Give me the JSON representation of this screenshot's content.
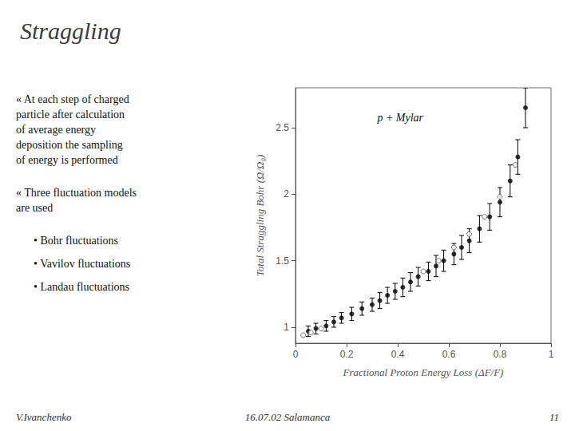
{
  "chart_data": {
    "type": "scatter",
    "title": "Straggling",
    "x_label": "Fractional Proton Energy Loss (ΔF/F)",
    "y_label": "Total Straggling Bohr (Ω/Ω₀)",
    "series": [
      {
        "type": "errorbar",
        "color": "#000000",
        "marker": "filled",
        "x": [
          0.05,
          0.08,
          0.12,
          0.15,
          0.18,
          0.22,
          0.26,
          0.3,
          0.33,
          0.36,
          0.39,
          0.42,
          0.45,
          0.48,
          0.52,
          0.55,
          0.58,
          0.62,
          0.65,
          0.68,
          0.72,
          0.76,
          0.8,
          0.84,
          0.87,
          0.9
        ],
        "values": [
          0.97,
          0.99,
          1.01,
          1.04,
          1.07,
          1.1,
          1.14,
          1.17,
          1.2,
          1.24,
          1.27,
          1.3,
          1.34,
          1.38,
          1.42,
          1.46,
          1.5,
          1.55,
          1.6,
          1.65,
          1.74,
          1.83,
          1.94,
          2.1,
          2.28,
          2.65
        ],
        "errors": [
          0.04,
          0.04,
          0.04,
          0.04,
          0.04,
          0.05,
          0.05,
          0.05,
          0.06,
          0.06,
          0.06,
          0.07,
          0.07,
          0.07,
          0.07,
          0.08,
          0.08,
          0.08,
          0.09,
          0.09,
          0.1,
          0.1,
          0.11,
          0.12,
          0.13,
          0.15
        ]
      },
      {
        "type": "scatter",
        "color": "#555555",
        "marker": "open",
        "x": [
          0.03,
          0.06,
          0.1,
          0.5,
          0.56,
          0.62,
          0.68,
          0.74,
          0.8,
          0.86
        ],
        "values": [
          0.94,
          0.96,
          0.99,
          1.42,
          1.5,
          1.6,
          1.7,
          1.83,
          1.98,
          2.22
        ]
      }
    ],
    "xlim": [
      0,
      1.0
    ],
    "xticks": [
      0,
      0.2,
      0.4,
      0.6,
      0.8,
      1
    ],
    "ylim": [
      0.88,
      2.8
    ],
    "yticks": [
      1,
      1.5,
      2,
      2.5
    ],
    "grid": false,
    "annotations": [
      {
        "text": "p + Mylar",
        "x": 0.32,
        "y": 2.62
      },
      {
        "text": "« At each step of charged\nparticle after calculation\nof average energy\ndeposition the sampling\nof energy is performed"
      },
      {
        "text": "« Three fluctuation models\nare used"
      },
      {
        "text": "• Bohr fluctuations"
      },
      {
        "text": "• Vavilov fluctuations"
      },
      {
        "text": "• Landau fluctuations"
      }
    ],
    "footer": [
      "V.Ivanchenko",
      "16.07.02 Salamanca",
      "11"
    ]
  }
}
